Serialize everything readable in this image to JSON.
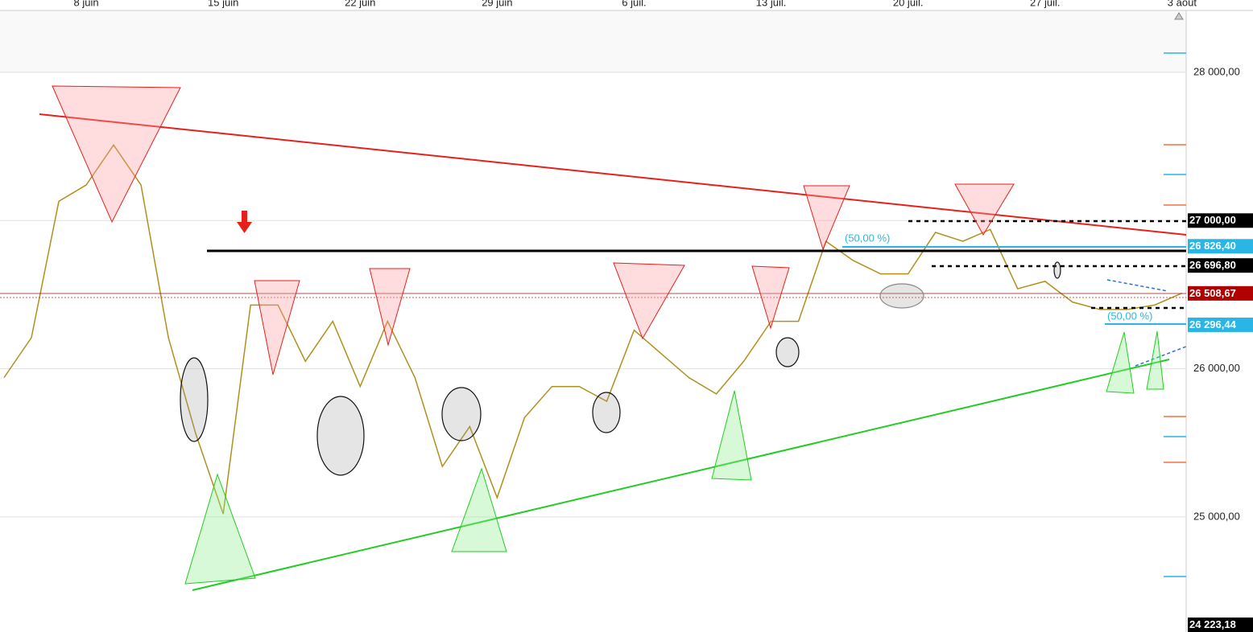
{
  "chart_data": {
    "type": "line",
    "categories": [
      null,
      null,
      null,
      "8 juin",
      null,
      null,
      null,
      null,
      "15 juin",
      null,
      null,
      null,
      null,
      "22 juin",
      null,
      null,
      null,
      null,
      "29 juin",
      null,
      null,
      null,
      null,
      "6 juil.",
      null,
      null,
      null,
      null,
      "13 juil.",
      null,
      null,
      null,
      null,
      "20 juil.",
      null,
      null,
      null,
      null,
      "27 juil.",
      null,
      null,
      null,
      null,
      "3 août"
    ],
    "series": [
      {
        "color": "#b0901c",
        "values": [
          25940,
          26210,
          27130,
          27240,
          27510,
          27240,
          26210,
          25560,
          25020,
          26430,
          26430,
          26050,
          26320,
          25880,
          26320,
          25940,
          25340,
          25610,
          25130,
          25670,
          25880,
          25880,
          25780,
          26260,
          26100,
          25940,
          25830,
          26050,
          26320,
          26320,
          26860,
          26730,
          26640,
          26640,
          26920,
          26860,
          26940,
          26540,
          26590,
          26450,
          26400,
          26400,
          26430,
          26510
        ]
      }
    ],
    "ylim": [
      24223.18,
      28418
    ],
    "yticks": [
      {
        "value": 28000,
        "label": "28 000,00"
      },
      {
        "value": 27000,
        "label": "27 000,00"
      },
      {
        "value": 26000,
        "label": "26 000,00"
      },
      {
        "value": 25000,
        "label": "25 000,00"
      }
    ],
    "grid": true,
    "price_tags": [
      {
        "value": 27000,
        "label": "27 000,00",
        "color": "#000000"
      },
      {
        "value": 26826.4,
        "label": "26 826,40",
        "color": "#29b6e6"
      },
      {
        "value": 26696.8,
        "label": "26 696,80",
        "color": "#000000"
      },
      {
        "value": 26508.67,
        "label": "26 508,67",
        "color": "#b00000"
      },
      {
        "value": 26296.44,
        "label": "26 296,44",
        "color": "#29b6e6"
      },
      {
        "value": 24223.18,
        "label": "24 223,18",
        "color": "#000000"
      }
    ],
    "annotations": [
      "(50,00 %)",
      "(50,00 %)"
    ]
  }
}
